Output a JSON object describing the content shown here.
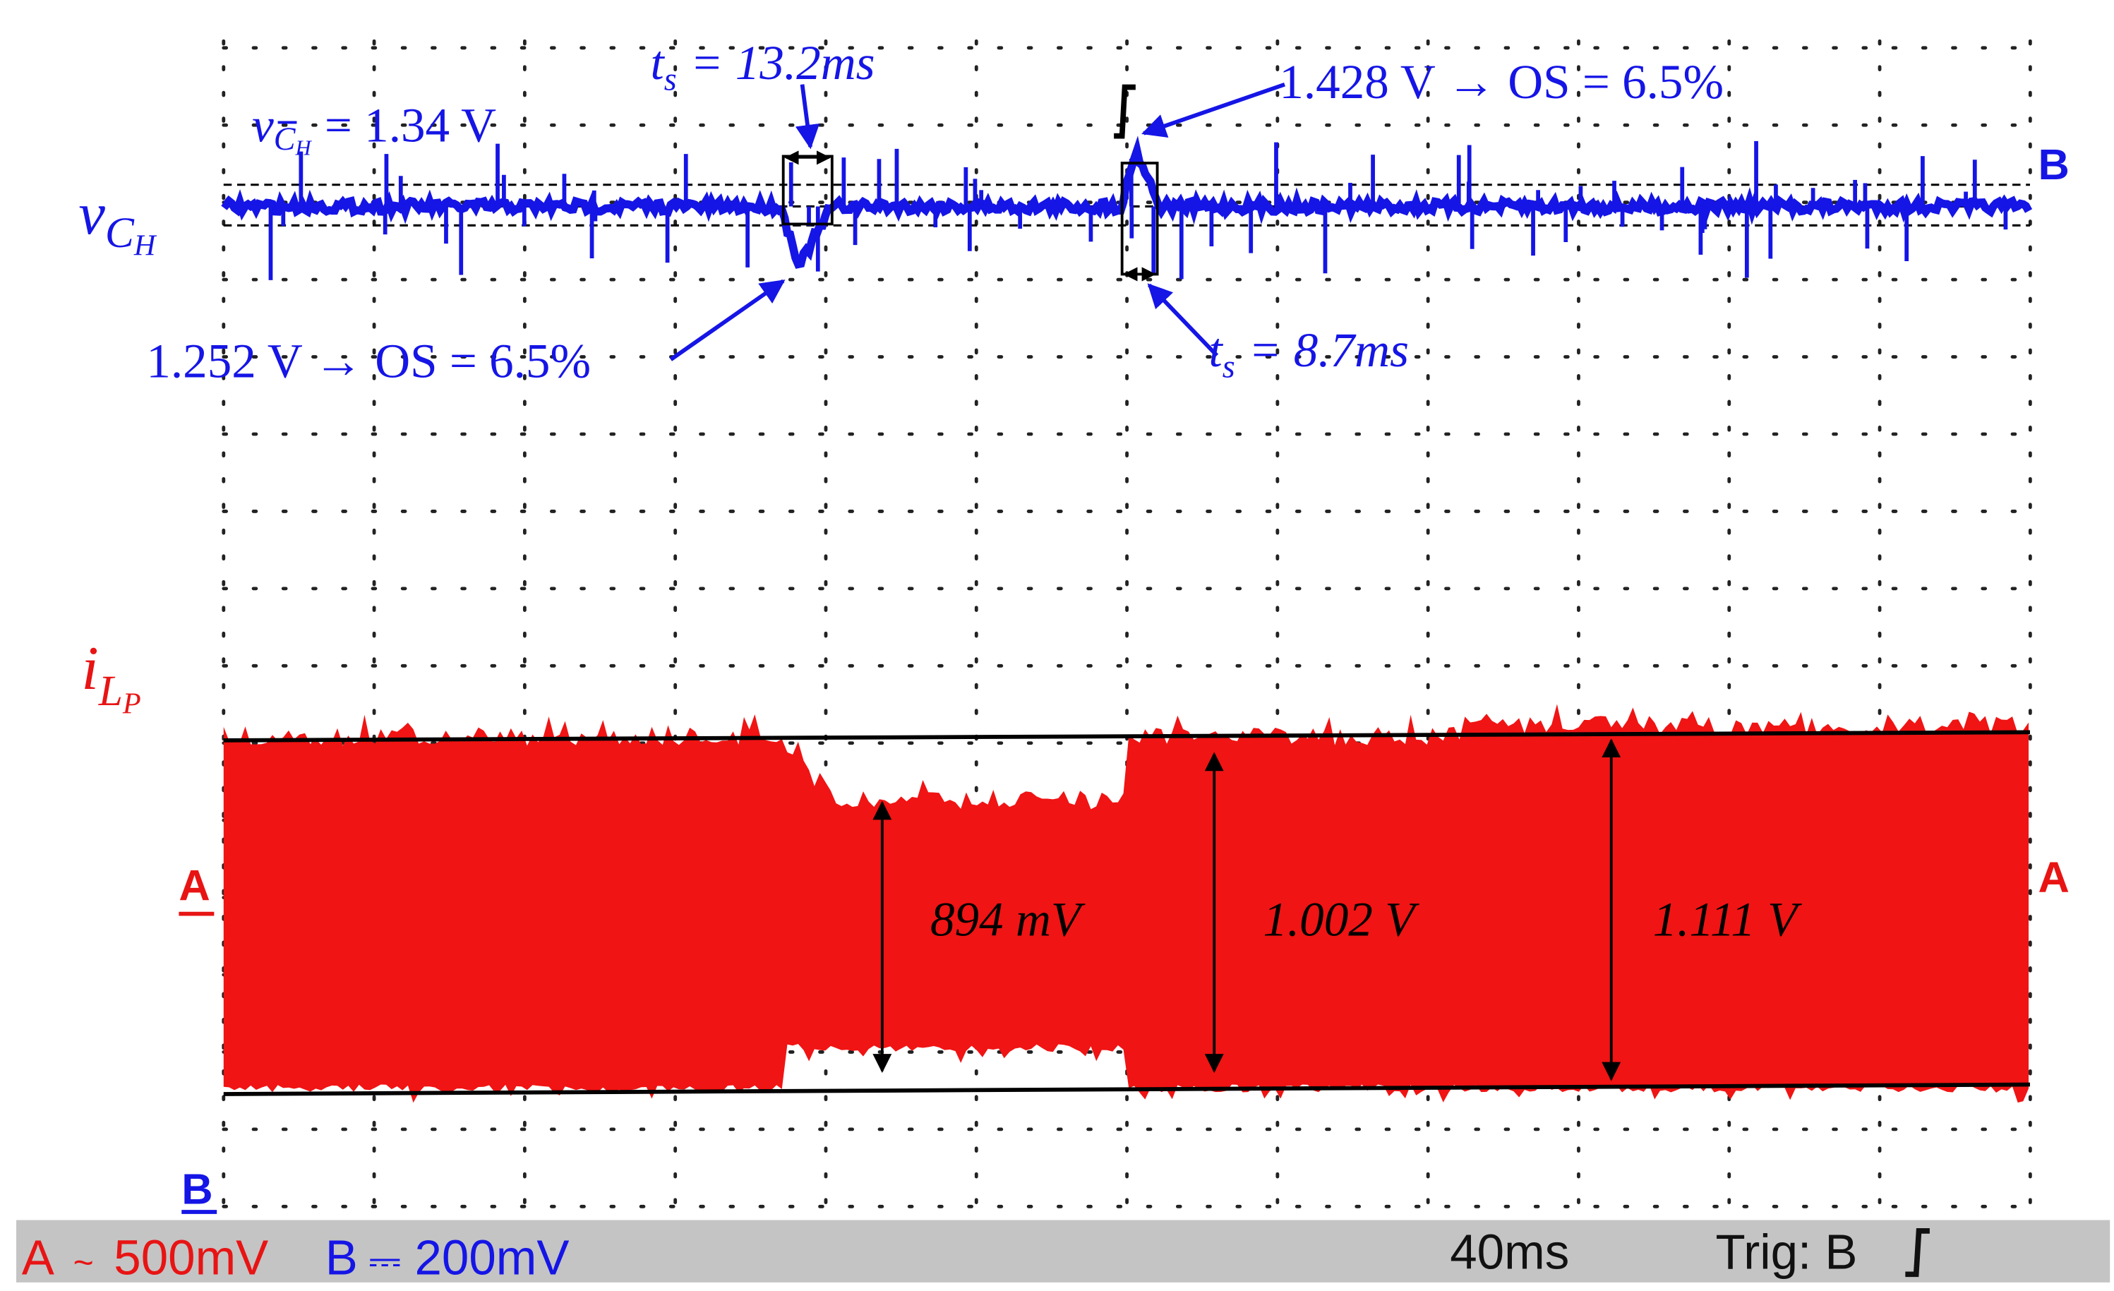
{
  "channel_labels": {
    "vch": {
      "base": "v",
      "sub": "C",
      "subsub": "H"
    },
    "ilp": {
      "base": "i",
      "sub": "L",
      "subsub": "P"
    }
  },
  "annotations": {
    "mean": {
      "base": "v",
      "sub": "C",
      "subsub": "H",
      "rest": "= 1.34 V"
    },
    "ts1": {
      "base": "t",
      "sub": "s",
      "rest": "= 13.2ms"
    },
    "ts2": {
      "base": "t",
      "sub": "s",
      "rest": "= 8.7ms"
    },
    "os1": "1.428 V → OS = 6.5%",
    "os2": "1.252 V → OS = 6.5%",
    "pp": [
      "894 mV",
      "1.002 V",
      "1.111 V"
    ]
  },
  "markers": {
    "b_right": "B",
    "a_left": "A",
    "a_right": "A",
    "b_left": "B"
  },
  "status": {
    "a": "A",
    "a_coupling": "~",
    "a_scale": "500mV",
    "b": "B",
    "b_coupling": "⎓",
    "b_scale": "200mV",
    "timebase": "40ms",
    "trigger": "Trig: B"
  }
}
